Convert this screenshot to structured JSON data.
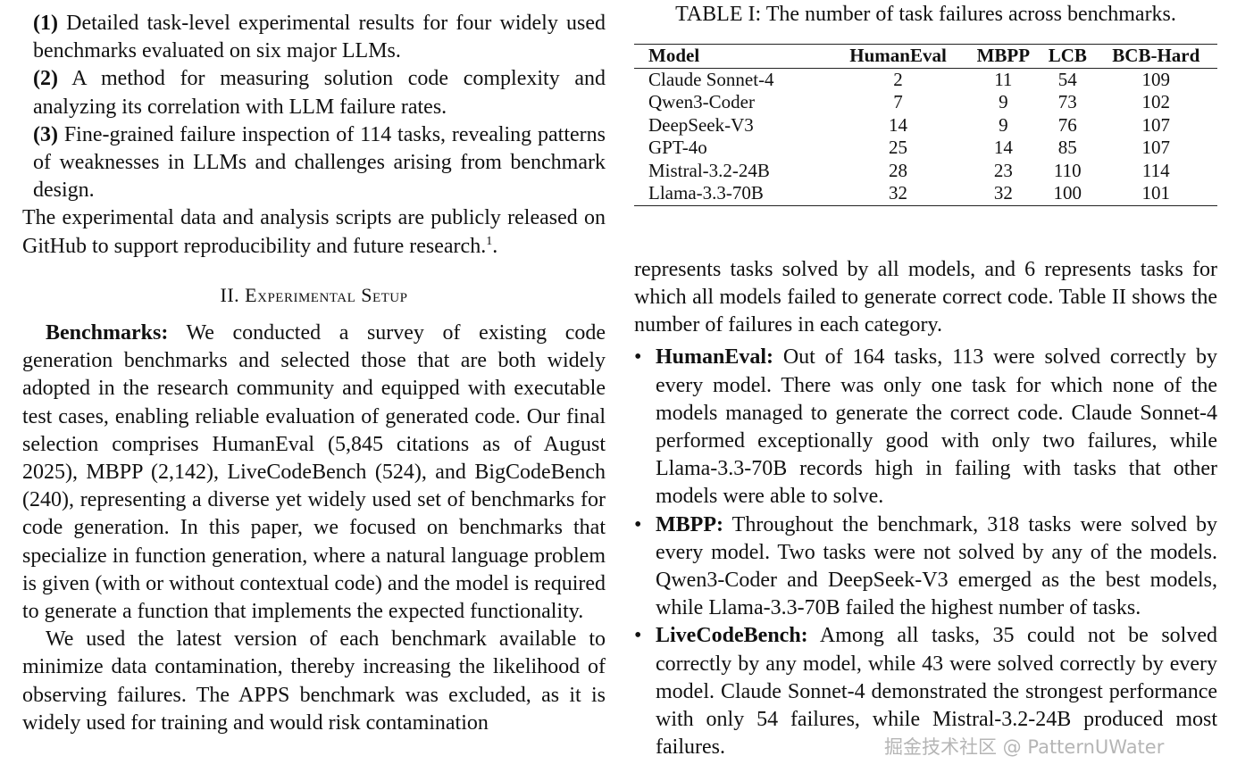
{
  "left_column": {
    "contributions": [
      {
        "label": "(1)",
        "text": "Detailed task-level experimental results for four widely used benchmarks evaluated on six major LLMs."
      },
      {
        "label": "(2)",
        "text": "A method for measuring solution code complexity and analyzing its correlation with LLM failure rates."
      },
      {
        "label": "(3)",
        "text": "Fine-grained failure inspection of 114 tasks, revealing patterns of weaknesses in LLMs and challenges arising from benchmark design."
      }
    ],
    "release_note": {
      "text": "The experimental data and analysis scripts are publicly released on GitHub to support reproducibility and future research.",
      "footnote_mark": "1",
      "end": "."
    },
    "section_heading": "II. Experimental Setup",
    "paragraphs": [
      {
        "label": "Benchmarks:",
        "text": "We conducted a survey of existing code generation benchmarks and selected those that are both widely adopted in the research community and equipped with executable test cases, enabling reliable evaluation of generated code. Our final selection comprises HumanEval (5,845 citations as of August 2025), MBPP (2,142), LiveCodeBench (524), and BigCodeBench (240), representing a diverse yet widely used set of benchmarks for code generation. In this paper, we focused on benchmarks that specialize in function generation, where a natural language problem is given (with or without contextual code) and the model is required to generate a function that implements the expected functionality."
      },
      {
        "text": "We used the latest version of each benchmark available to minimize data contamination, thereby increasing the likelihood of observing failures. The APPS benchmark was excluded, as it is widely used for training and would risk contamination"
      }
    ]
  },
  "right_column": {
    "table": {
      "caption": "TABLE I: The number of task failures across benchmarks.",
      "columns": [
        "Model",
        "HumanEval",
        "MBPP",
        "LCB",
        "BCB-Hard"
      ],
      "rows": [
        [
          "Claude Sonnet-4",
          2,
          11,
          54,
          109
        ],
        [
          "Qwen3-Coder",
          7,
          9,
          73,
          102
        ],
        [
          "DeepSeek-V3",
          14,
          9,
          76,
          107
        ],
        [
          "GPT-4o",
          25,
          14,
          85,
          107
        ],
        [
          "Mistral-3.2-24B",
          28,
          23,
          110,
          114
        ],
        [
          "Llama-3.3-70B",
          32,
          32,
          100,
          101
        ]
      ]
    },
    "paragraph": "represents tasks solved by all models, and 6 represents tasks for which all models failed to generate correct code. Table II shows the number of failures in each category.",
    "bullets": [
      {
        "label": "HumanEval:",
        "text": "Out of 164 tasks, 113 were solved correctly by every model. There was only one task for which none of the models managed to generate the correct code. Claude Sonnet-4 performed exceptionally good with only two failures, while Llama-3.3-70B records high in failing with tasks that other models were able to solve."
      },
      {
        "label": "MBPP:",
        "text": "Throughout the benchmark, 318 tasks were solved by every model. Two tasks were not solved by any of the models. Qwen3-Coder and DeepSeek-V3 emerged as the best models, while Llama-3.3-70B failed the highest number of tasks."
      },
      {
        "label": "LiveCodeBench:",
        "text": "Among all tasks, 35 could not be solved correctly by any model, while 43 were solved correctly by every model. Claude Sonnet-4 demonstrated the strongest performance with only 54 failures, while Mistral-3.2-24B produced most failures."
      }
    ]
  },
  "watermark": "掘金技术社区 @ PatternUWater"
}
